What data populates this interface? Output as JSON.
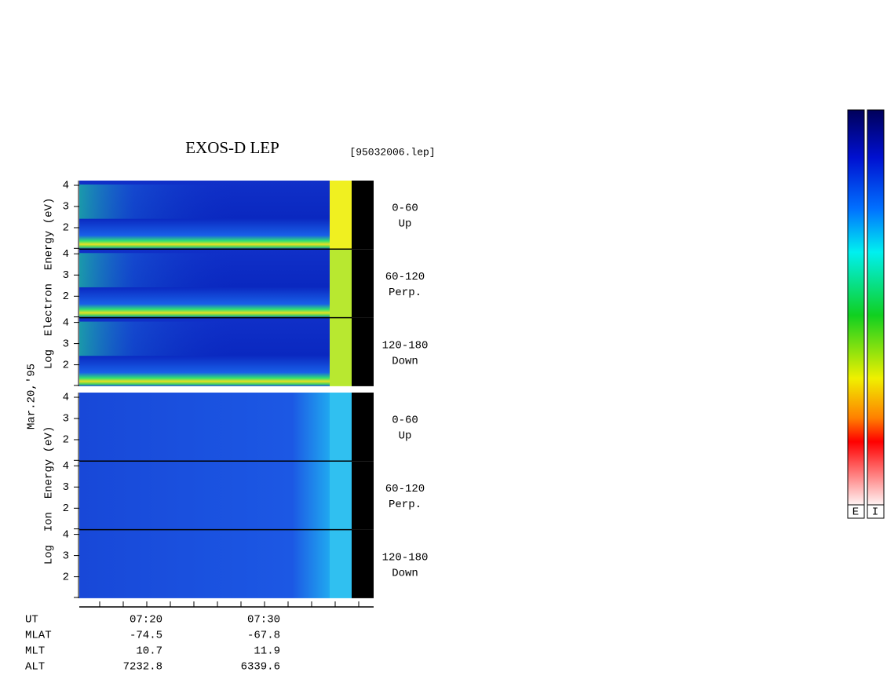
{
  "header": {
    "title": "EXOS-D LEP",
    "file": "[95032006.lep]",
    "date": "Mar.20,'95"
  },
  "panels": [
    {
      "axis_label": "Log  Electron  Energy (eV)",
      "subpanels": [
        {
          "ticks": [
            "4",
            "3",
            "2"
          ],
          "pitch": "0-60",
          "direction": "Up"
        },
        {
          "ticks": [
            "4",
            "3",
            "2"
          ],
          "pitch": "60-120",
          "direction": "Perp."
        },
        {
          "ticks": [
            "4",
            "3",
            "2"
          ],
          "pitch": "120-180",
          "direction": "Down"
        }
      ]
    },
    {
      "axis_label": "Log  Ion  Energy (eV)",
      "subpanels": [
        {
          "ticks": [
            "4",
            "3",
            "2"
          ],
          "pitch": "0-60",
          "direction": "Up"
        },
        {
          "ticks": [
            "4",
            "3",
            "2"
          ],
          "pitch": "60-120",
          "direction": "Perp."
        },
        {
          "ticks": [
            "4",
            "3",
            "2"
          ],
          "pitch": "120-180",
          "direction": "Down"
        }
      ]
    }
  ],
  "time_axis": {
    "rows": [
      {
        "label": "UT",
        "values": [
          "07:20",
          "07:30"
        ]
      },
      {
        "label": "MLAT",
        "values": [
          "-74.5",
          "-67.8"
        ]
      },
      {
        "label": "MLT",
        "values": [
          "10.7",
          "11.9"
        ]
      },
      {
        "label": "ALT",
        "values": [
          "7232.8",
          "6339.6"
        ]
      }
    ]
  },
  "color_bars": {
    "labels": [
      "E",
      "I"
    ]
  }
}
